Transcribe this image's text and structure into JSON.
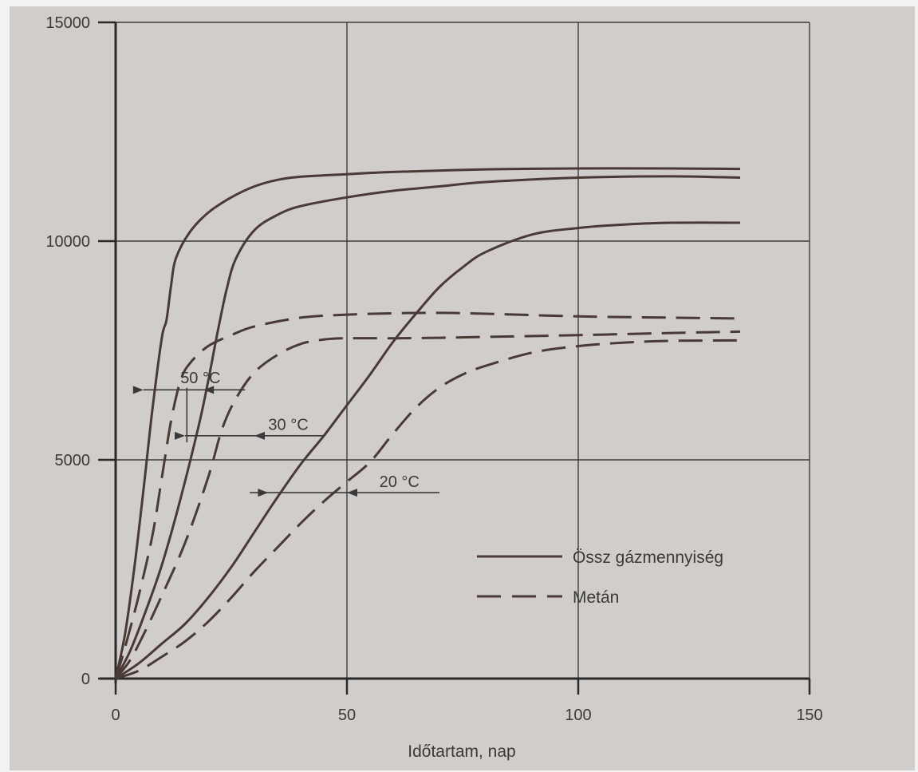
{
  "chart_data": {
    "type": "line",
    "title": "",
    "xlabel": "Időtartam, nap",
    "ylabel": "",
    "xlim": [
      0,
      150
    ],
    "ylim": [
      0,
      15000
    ],
    "x_ticks": [
      0,
      50,
      100,
      150
    ],
    "y_ticks": [
      0,
      5000,
      10000,
      15000
    ],
    "x_tick_labels": [
      "0",
      "50",
      "100",
      "150"
    ],
    "y_tick_labels": [
      "0",
      "5000",
      "10000",
      "15000"
    ],
    "grid": true,
    "legend": {
      "placement": "lower-right",
      "entries": [
        {
          "label": "Össz gázmennyiség",
          "style": "solid"
        },
        {
          "label": "Metán",
          "style": "dashed"
        }
      ]
    },
    "annotations": [
      {
        "text": "50 °C"
      },
      {
        "text": "30 °C"
      },
      {
        "text": "20 °C"
      }
    ],
    "series": [
      {
        "group": "50 °C",
        "style": "solid",
        "x": [
          0,
          2,
          4,
          6,
          8,
          10,
          11,
          12,
          13,
          16,
          20,
          25,
          30,
          35,
          40,
          50,
          60,
          80,
          100,
          120,
          135
        ],
        "y": [
          0,
          1000,
          2500,
          4300,
          6200,
          7800,
          8200,
          9000,
          9600,
          10200,
          10650,
          11000,
          11250,
          11400,
          11470,
          11530,
          11580,
          11640,
          11660,
          11660,
          11650
        ]
      },
      {
        "group": "50 °C",
        "style": "dashed",
        "x": [
          0,
          2,
          5,
          8,
          10,
          12,
          14,
          16,
          20,
          25,
          30,
          40,
          50,
          60,
          70,
          80,
          100,
          120,
          135
        ],
        "y": [
          0,
          700,
          1900,
          3300,
          4600,
          5900,
          6800,
          7200,
          7600,
          7850,
          8050,
          8250,
          8320,
          8350,
          8360,
          8340,
          8280,
          8250,
          8230
        ]
      },
      {
        "group": "30 °C",
        "style": "solid",
        "x": [
          0,
          3,
          6,
          10,
          14,
          18,
          20,
          22,
          24,
          26,
          30,
          35,
          40,
          50,
          60,
          70,
          80,
          100,
          120,
          135
        ],
        "y": [
          0,
          600,
          1400,
          2600,
          4100,
          5800,
          6800,
          7900,
          8900,
          9600,
          10250,
          10600,
          10800,
          11000,
          11150,
          11250,
          11350,
          11450,
          11480,
          11450
        ]
      },
      {
        "group": "30 °C",
        "style": "dashed",
        "x": [
          0,
          3,
          6,
          10,
          15,
          20,
          23,
          26,
          30,
          35,
          40,
          45,
          50,
          60,
          70,
          80,
          100,
          120,
          135
        ],
        "y": [
          0,
          400,
          1000,
          1900,
          3100,
          4600,
          5700,
          6400,
          7000,
          7400,
          7650,
          7750,
          7780,
          7780,
          7790,
          7810,
          7850,
          7900,
          7930
        ]
      },
      {
        "group": "20 °C",
        "style": "solid",
        "x": [
          0,
          5,
          10,
          15,
          20,
          25,
          30,
          35,
          40,
          45,
          50,
          55,
          60,
          65,
          70,
          75,
          80,
          90,
          100,
          110,
          120,
          135
        ],
        "y": [
          0,
          350,
          800,
          1250,
          1850,
          2550,
          3350,
          4150,
          4900,
          5550,
          6250,
          6950,
          7700,
          8350,
          8950,
          9400,
          9750,
          10150,
          10300,
          10380,
          10420,
          10420
        ]
      },
      {
        "group": "20 °C",
        "style": "dashed",
        "x": [
          0,
          5,
          10,
          15,
          20,
          25,
          30,
          35,
          40,
          45,
          50,
          55,
          60,
          65,
          70,
          75,
          80,
          90,
          100,
          110,
          120,
          135
        ],
        "y": [
          0,
          180,
          500,
          850,
          1300,
          1850,
          2450,
          3000,
          3550,
          4050,
          4500,
          4950,
          5600,
          6200,
          6650,
          6950,
          7150,
          7450,
          7600,
          7680,
          7720,
          7730
        ]
      }
    ]
  }
}
